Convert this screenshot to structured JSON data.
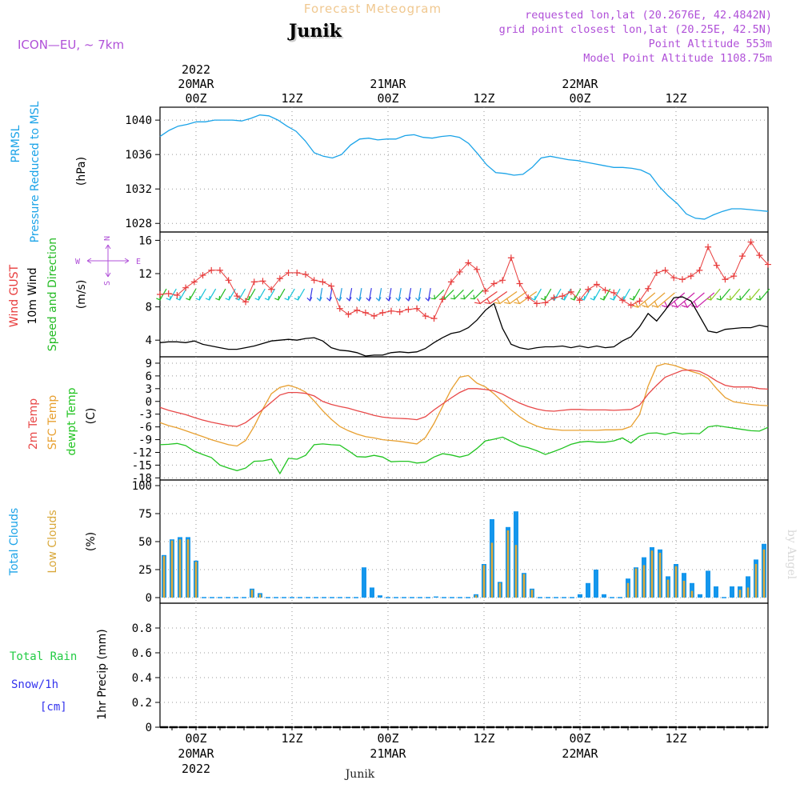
{
  "header": {
    "product_title": "Forecast Meteogram",
    "location_name": "Junik",
    "model_label": "ICON—EU, ~ 7km",
    "requested_point": "requested lon,lat (20.2676E, 42.4842N)",
    "grid_point": "grid point closest lon,lat (20.25E, 42.5N)",
    "point_altitude": "Point Altitude 553m",
    "model_point_altitude": "Model Point Altitude 1108.75m"
  },
  "footer": {
    "location_name": "Junik",
    "credit": "by Angel"
  },
  "time_axis": {
    "hours_total": 76,
    "start_offset_hours": -4.5,
    "major_ticks": [
      {
        "h": 0,
        "label": "00Z",
        "date": "20MAR",
        "year": "2022"
      },
      {
        "h": 12,
        "label": "12Z",
        "date": "",
        "year": ""
      },
      {
        "h": 24,
        "label": "00Z",
        "date": "21MAR",
        "year": ""
      },
      {
        "h": 36,
        "label": "12Z",
        "date": "",
        "year": ""
      },
      {
        "h": 48,
        "label": "00Z",
        "date": "22MAR",
        "year": ""
      },
      {
        "h": 60,
        "label": "12Z",
        "date": "",
        "year": ""
      }
    ]
  },
  "colors": {
    "pressure": "#1aa3e8",
    "gust": "#e83c3c",
    "wind10m": "#000000",
    "direction": "#22bb22",
    "temp2m": "#e84848",
    "sfc_temp": "#e8a030",
    "dewpt": "#22c422",
    "total_cloud": "#1496ec",
    "low_cloud": "#d9a83a",
    "rain": "#22cc44",
    "snow": "#3333ee",
    "title": "#f0c890",
    "meta": "#b050d8"
  },
  "chart_data": [
    {
      "type": "line",
      "panel": "pressure",
      "ylabel_lines": [
        "PRMSL",
        "Pressure Reduced to MSL"
      ],
      "unit": "(hPa)",
      "ylim": [
        1027,
        1041.5
      ],
      "yticks": [
        1028,
        1032,
        1036,
        1040
      ],
      "series": [
        {
          "key": "prmsl",
          "values": [
            1038.1,
            1038.8,
            1039.3,
            1039.5,
            1039.8,
            1039.8,
            1040,
            1040,
            1040,
            1039.9,
            1040.2,
            1040.6,
            1040.5,
            1040,
            1039.3,
            1038.7,
            1037.6,
            1036.2,
            1035.8,
            1035.6,
            1036,
            1037.1,
            1037.8,
            1037.9,
            1037.7,
            1037.8,
            1037.8,
            1038.2,
            1038.3,
            1038,
            1037.9,
            1038.1,
            1038.2,
            1038,
            1037.3,
            1036.1,
            1034.8,
            1033.9,
            1033.8,
            1033.6,
            1033.7,
            1034.5,
            1035.6,
            1035.8,
            1035.6,
            1035.4,
            1035.3,
            1035.1,
            1034.9,
            1034.7,
            1034.5,
            1034.5,
            1034.4,
            1034.2,
            1033.7,
            1032.3,
            1031.2,
            1030.3,
            1029.1,
            1028.6,
            1028.5,
            1029,
            1029.4,
            1029.7,
            1029.7,
            1029.6,
            1029.5,
            1029.4
          ]
        }
      ]
    },
    {
      "type": "line",
      "panel": "wind",
      "ylabel_lines": [
        "Wind GUST",
        "10m Wind",
        "Speed and Direction"
      ],
      "unit": "(m/s)",
      "ylim": [
        2,
        17
      ],
      "yticks": [
        4,
        8,
        12,
        16
      ],
      "compass": {
        "n": "N",
        "s": "S",
        "w": "W",
        "e": "E"
      },
      "series": [
        {
          "key": "gust",
          "name": "Wind GUST",
          "values": [
            9.5,
            9.6,
            9.4,
            10.3,
            11,
            11.8,
            12.4,
            12.4,
            11.2,
            9.3,
            8.6,
            11,
            11.1,
            10.1,
            11.4,
            12.1,
            12.1,
            11.9,
            11.2,
            11,
            10.5,
            7.8,
            7.1,
            7.6,
            7.3,
            6.9,
            7.3,
            7.5,
            7.4,
            7.7,
            7.8,
            6.9,
            6.6,
            8.9,
            11,
            12.2,
            13.3,
            12.5,
            9.9,
            10.8,
            11.2,
            13.9,
            10.8,
            9.1,
            8.4,
            8.5,
            9.1,
            9.3,
            9.8,
            8.8,
            10.1,
            10.7,
            10,
            9.7,
            8.8,
            8.2,
            8.7,
            10.2,
            12.1,
            12.4,
            11.5,
            11.3,
            11.7,
            12.4,
            15.2,
            13,
            11.3,
            11.7,
            14.1,
            15.8,
            14.2,
            13.1
          ]
        },
        {
          "key": "wind10m",
          "name": "10m Wind",
          "values": [
            3.7,
            3.8,
            3.8,
            3.7,
            3.9,
            3.5,
            3.3,
            3.1,
            2.9,
            2.9,
            3.1,
            3.3,
            3.6,
            3.9,
            4,
            4.1,
            4,
            4.2,
            4.3,
            3.9,
            3.1,
            2.8,
            2.7,
            2.5,
            2.1,
            2.2,
            2.2,
            2.5,
            2.6,
            2.5,
            2.6,
            3,
            3.7,
            4.3,
            4.8,
            5,
            5.5,
            6.4,
            7.6,
            8.4,
            5.4,
            3.5,
            3.1,
            2.9,
            3.1,
            3.2,
            3.2,
            3.3,
            3.1,
            3.3,
            3.1,
            3.3,
            3.1,
            3.2,
            3.9,
            4.4,
            5.6,
            7.2,
            6.3,
            7.6,
            9.1,
            9.2,
            8.7,
            6.9,
            5.1,
            4.9,
            5.3,
            5.4,
            5.5,
            5.5,
            5.8,
            5.6
          ]
        }
      ]
    },
    {
      "type": "line",
      "panel": "temperature",
      "ylabel_lines": [
        "2m Temp",
        "SFC Temp",
        "dewpt Temp"
      ],
      "unit": "(C)",
      "ylim": [
        -18.5,
        10.5
      ],
      "yticks": [
        -18,
        -15,
        -12,
        -9,
        -6,
        -3,
        0,
        3,
        6,
        9
      ],
      "series": [
        {
          "key": "temp2m",
          "name": "2m Temp",
          "values": [
            -1.4,
            -2.1,
            -2.6,
            -3.1,
            -3.8,
            -4.4,
            -4.9,
            -5.3,
            -5.7,
            -5.9,
            -5,
            -3.5,
            -1.9,
            -0.2,
            1.5,
            2.1,
            2.1,
            1.9,
            1.3,
            0,
            -0.7,
            -1.2,
            -1.6,
            -2.2,
            -2.7,
            -3.3,
            -3.7,
            -3.9,
            -4,
            -4.1,
            -4.3,
            -3.6,
            -2,
            -0.6,
            0.8,
            2.1,
            3,
            3,
            2.8,
            2.5,
            1.7,
            0.6,
            -0.4,
            -1.2,
            -1.8,
            -2.2,
            -2.3,
            -2.1,
            -1.9,
            -1.9,
            -2,
            -2,
            -2,
            -2.1,
            -2,
            -1.9,
            -0.9,
            1.7,
            3.8,
            5.7,
            6.5,
            7.3,
            7.4,
            7.1,
            6.1,
            4.8,
            3.8,
            3.4,
            3.4,
            3.4,
            3,
            2.9
          ]
        },
        {
          "key": "sfc_temp",
          "name": "SFC Temp",
          "values": [
            -5,
            -5.7,
            -6.2,
            -6.9,
            -7.6,
            -8.3,
            -9,
            -9.6,
            -10.2,
            -10.5,
            -9.2,
            -5.9,
            -1.8,
            1.8,
            3.3,
            3.8,
            3.2,
            2.2,
            0.1,
            -2.2,
            -4.2,
            -5.9,
            -6.9,
            -7.7,
            -8.3,
            -8.6,
            -9,
            -9.2,
            -9.4,
            -9.7,
            -10,
            -8.5,
            -5.2,
            -1.2,
            2.8,
            5.7,
            6.1,
            4.3,
            3.4,
            1.8,
            -0.1,
            -2,
            -3.6,
            -4.9,
            -5.8,
            -6.4,
            -6.6,
            -6.8,
            -6.8,
            -6.8,
            -6.8,
            -6.8,
            -6.7,
            -6.7,
            -6.6,
            -5.9,
            -3.1,
            3.6,
            8.3,
            8.9,
            8.5,
            7.8,
            7.1,
            6.5,
            5.4,
            3,
            0.9,
            -0.1,
            -0.4,
            -0.7,
            -0.9,
            -1
          ]
        },
        {
          "key": "dewpt",
          "name": "dewpt Temp",
          "values": [
            -10.2,
            -10.1,
            -9.9,
            -10.4,
            -11.7,
            -12.5,
            -13.2,
            -15,
            -15.7,
            -16.3,
            -15.7,
            -14.1,
            -14,
            -13.6,
            -17,
            -13.4,
            -13.6,
            -12.7,
            -10.2,
            -10,
            -10.2,
            -10.3,
            -11.6,
            -13,
            -13.1,
            -12.7,
            -13.1,
            -14.2,
            -14.1,
            -14.1,
            -14.5,
            -14.3,
            -13.1,
            -12.3,
            -12.6,
            -13.1,
            -12.6,
            -11.1,
            -9.3,
            -8.9,
            -8.4,
            -9.4,
            -10.4,
            -10.9,
            -11.6,
            -12.5,
            -11.8,
            -11,
            -10.1,
            -9.6,
            -9.4,
            -9.6,
            -9.6,
            -9.3,
            -8.6,
            -9.8,
            -8.2,
            -7.5,
            -7.4,
            -7.8,
            -7.3,
            -7.7,
            -7.5,
            -7.6,
            -6,
            -5.7,
            -6,
            -6.3,
            -6.6,
            -6.9,
            -7,
            -6.1
          ]
        }
      ]
    },
    {
      "type": "bar",
      "panel": "clouds",
      "ylabel_lines": [
        "Total Clouds",
        "Low Clouds"
      ],
      "unit": "(%)",
      "ylim": [
        -5,
        105
      ],
      "yticks": [
        0,
        25,
        50,
        75,
        100
      ],
      "series": [
        {
          "key": "total",
          "name": "Total Clouds",
          "values": [
            38,
            52,
            54,
            54,
            33,
            0,
            0,
            0,
            0,
            0,
            0,
            8,
            4,
            0,
            0,
            0,
            0,
            0,
            0,
            0,
            0,
            0,
            0,
            0,
            0,
            27,
            9,
            2,
            0,
            0,
            0,
            0,
            0,
            0,
            1,
            0,
            0,
            0,
            0,
            3,
            30,
            70,
            14,
            63,
            77,
            22,
            8,
            0,
            0,
            0,
            0,
            0,
            3,
            13,
            25,
            3,
            0,
            0,
            17,
            27,
            36,
            45,
            43,
            19,
            30,
            22,
            13,
            3,
            24,
            10,
            0,
            10,
            10,
            19,
            34,
            48
          ]
        },
        {
          "key": "low",
          "name": "Low Clouds",
          "values": [
            37,
            51,
            52,
            52,
            32,
            0,
            0,
            0,
            0,
            0,
            0,
            7,
            3,
            0,
            0,
            0,
            0,
            0,
            0,
            0,
            0,
            0,
            0,
            0,
            0,
            0,
            0,
            0,
            0,
            0,
            0,
            0,
            0,
            0,
            0,
            0,
            0,
            0,
            0,
            2,
            29,
            49,
            13,
            60,
            47,
            21,
            7,
            0,
            0,
            0,
            0,
            0,
            0,
            0,
            0,
            0,
            0,
            0,
            13,
            26,
            29,
            42,
            40,
            16,
            28,
            15,
            6,
            0,
            0,
            0,
            0,
            0,
            7,
            9,
            30,
            43
          ]
        }
      ]
    },
    {
      "type": "bar",
      "panel": "precip",
      "ylabel_lines": [
        "1hr Precip (mm)"
      ],
      "legend_rain": "Total  Rain",
      "legend_snow": "Snow/1h",
      "legend_snow_unit": "[cm]",
      "ylim": [
        0,
        1
      ],
      "yticks": [
        0,
        0.2,
        0.4,
        0.6,
        0.8
      ],
      "ytick_labels": [
        "0",
        "0.2",
        "0.4",
        "0.6",
        "0.8"
      ],
      "series": [
        {
          "key": "rain",
          "name": "Total Rain",
          "values": [
            0
          ]
        },
        {
          "key": "snow",
          "name": "Snow/1h",
          "values": [
            0
          ]
        }
      ]
    }
  ]
}
